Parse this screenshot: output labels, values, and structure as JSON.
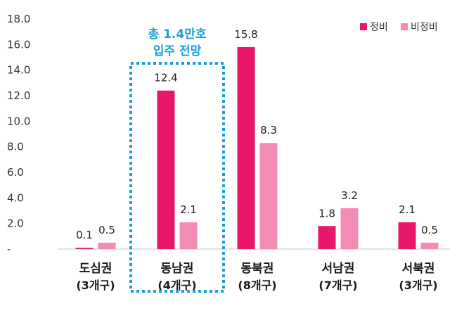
{
  "chart_data": {
    "type": "bar",
    "ylim": [
      0,
      18
    ],
    "y_ticks": [
      {
        "value": 0,
        "label": "-"
      },
      {
        "value": 2,
        "label": "2.0"
      },
      {
        "value": 4,
        "label": "4.0"
      },
      {
        "value": 6,
        "label": "6.0"
      },
      {
        "value": 8,
        "label": "8.0"
      },
      {
        "value": 10,
        "label": "10.0"
      },
      {
        "value": 12,
        "label": "12.0"
      },
      {
        "value": 14,
        "label": "14.0"
      },
      {
        "value": 16,
        "label": "16.0"
      },
      {
        "value": 18,
        "label": "18.0"
      }
    ],
    "categories": [
      {
        "name": "도심권",
        "sub": "(3개구)"
      },
      {
        "name": "동남권",
        "sub": "(4개구)"
      },
      {
        "name": "동북권",
        "sub": "(8개구)"
      },
      {
        "name": "서남권",
        "sub": "(7개구)"
      },
      {
        "name": "서북권",
        "sub": "(3개구)"
      }
    ],
    "series": [
      {
        "name": "정비",
        "color": "#e8176b",
        "values": [
          0.1,
          12.4,
          15.8,
          1.8,
          2.1
        ],
        "labels": [
          "0.1",
          "12.4",
          "15.8",
          "1.8",
          "2.1"
        ]
      },
      {
        "name": "비정비",
        "color": "#f48bb5",
        "values": [
          0.5,
          2.1,
          8.3,
          3.2,
          0.5
        ],
        "labels": [
          "0.5",
          "2.1",
          "8.3",
          "3.2",
          "0.5"
        ]
      }
    ],
    "legend_position": "top-right",
    "grid": false,
    "annotation": {
      "lines": [
        "총 1.4만호",
        "입주 전망"
      ],
      "color": "#1a9fd4",
      "category_index": 1
    }
  }
}
